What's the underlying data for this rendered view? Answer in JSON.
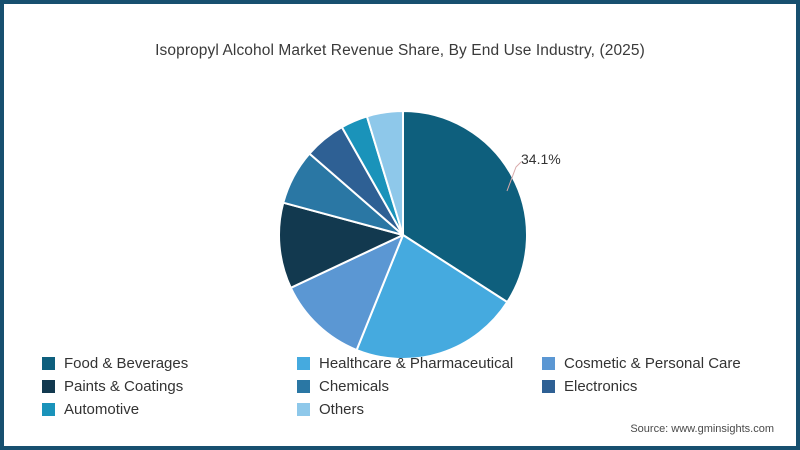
{
  "title": "Isopropyl Alcohol Market Revenue Share, By End Use Industry, (2025)",
  "annotation": {
    "label": "34.1%"
  },
  "source": "Source: www.gminsights.com",
  "colors": {
    "panel_border": "#17506f",
    "slice_separator": "#ffffff",
    "leader_line": "#d8aaaa",
    "text": "#333333"
  },
  "chart_data": {
    "type": "pie",
    "title": "Isopropyl Alcohol Market Revenue Share, By End Use Industry, (2025)",
    "start_angle_deg": 0,
    "direction": "clockwise",
    "legend_position": "bottom",
    "labeled_slice": {
      "label": "Food & Beverages",
      "percent": 34.1
    },
    "slices": [
      {
        "label": "Food & Beverages",
        "percent": 34.1,
        "color": "#0e5f7d"
      },
      {
        "label": "Healthcare & Pharmaceutical",
        "percent": 22.0,
        "color": "#45aadf"
      },
      {
        "label": "Cosmetic & Personal Care",
        "percent": 11.9,
        "color": "#5b97d3"
      },
      {
        "label": "Paints & Coatings",
        "percent": 11.2,
        "color": "#12394f"
      },
      {
        "label": "Chemicals",
        "percent": 7.2,
        "color": "#2a77a4"
      },
      {
        "label": "Electronics",
        "percent": 5.4,
        "color": "#2e6094"
      },
      {
        "label": "Automotive",
        "percent": 3.5,
        "color": "#1a93ba"
      },
      {
        "label": "Others",
        "percent": 4.7,
        "color": "#8ec8ea"
      }
    ]
  }
}
